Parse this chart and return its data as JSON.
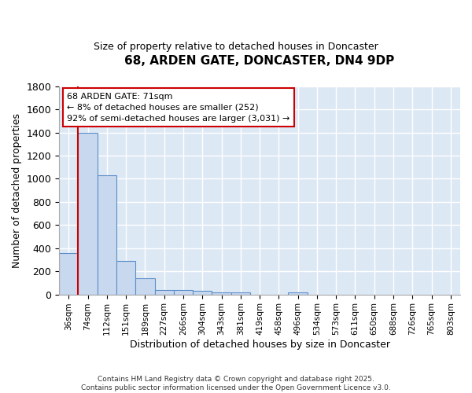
{
  "title": "68, ARDEN GATE, DONCASTER, DN4 9DP",
  "subtitle": "Size of property relative to detached houses in Doncaster",
  "xlabel": "Distribution of detached houses by size in Doncaster",
  "ylabel": "Number of detached properties",
  "bin_labels": [
    "36sqm",
    "74sqm",
    "112sqm",
    "151sqm",
    "189sqm",
    "227sqm",
    "266sqm",
    "304sqm",
    "343sqm",
    "381sqm",
    "419sqm",
    "458sqm",
    "496sqm",
    "534sqm",
    "573sqm",
    "611sqm",
    "650sqm",
    "688sqm",
    "726sqm",
    "765sqm",
    "803sqm"
  ],
  "bar_values": [
    360,
    1400,
    1030,
    290,
    137,
    40,
    35,
    28,
    18,
    15,
    0,
    0,
    15,
    0,
    0,
    0,
    0,
    0,
    0,
    0,
    0
  ],
  "bar_color": "#c8d8ee",
  "bar_edge_color": "#5b8fc9",
  "vline_color": "#cc0000",
  "annotation_text": "68 ARDEN GATE: 71sqm\n← 8% of detached houses are smaller (252)\n92% of semi-detached houses are larger (3,031) →",
  "annotation_box_color": "#cc0000",
  "ylim": [
    0,
    1800
  ],
  "yticks": [
    0,
    200,
    400,
    600,
    800,
    1000,
    1200,
    1400,
    1600,
    1800
  ],
  "bg_color": "#dde8f5",
  "grid_color": "#ffffff",
  "fig_bg_color": "#ffffff",
  "footer_line1": "Contains HM Land Registry data © Crown copyright and database right 2025.",
  "footer_line2": "Contains public sector information licensed under the Open Government Licence v3.0."
}
